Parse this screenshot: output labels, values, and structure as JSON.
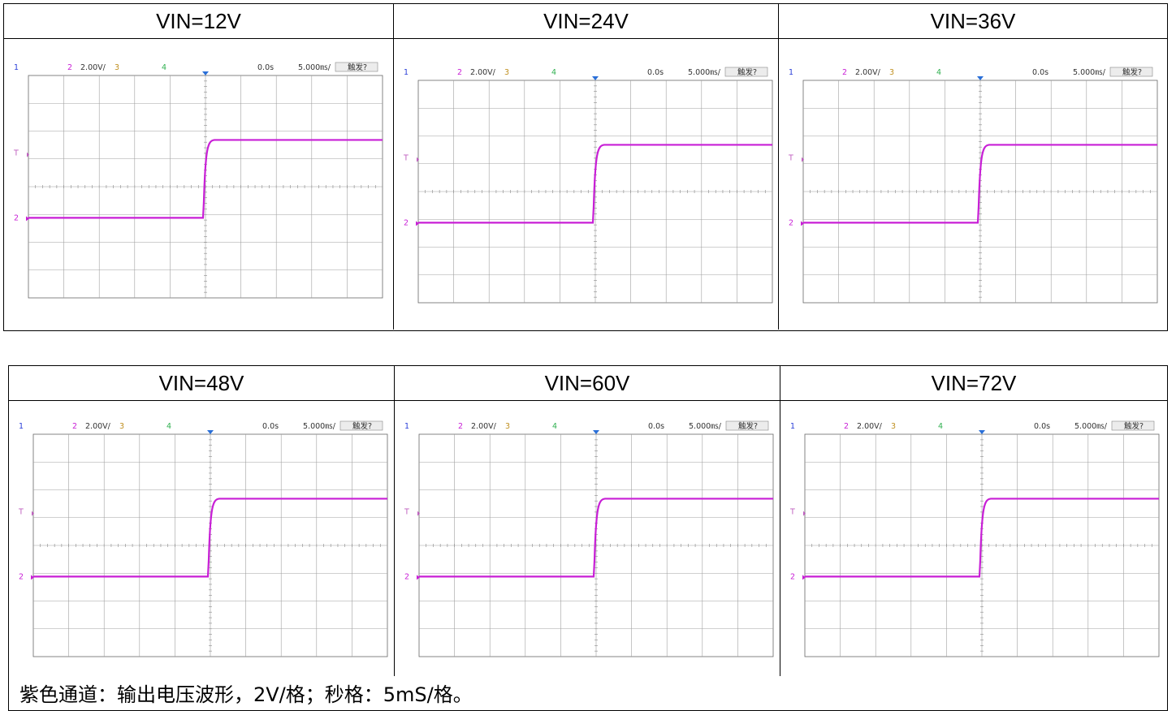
{
  "panels": [
    {
      "title": "VIN=12V"
    },
    {
      "title": "VIN=24V"
    },
    {
      "title": "VIN=36V"
    },
    {
      "title": "VIN=48V"
    },
    {
      "title": "VIN=60V"
    },
    {
      "title": "VIN=72V"
    }
  ],
  "scope": {
    "ch1": "1",
    "ch2": "2",
    "ch2_scale": "2.00V/",
    "ch3": "3",
    "ch4": "4",
    "time_offset": "0.0s",
    "time_scale": "5.000㎳/",
    "trigger": "触发?",
    "trigger_marker": "T",
    "ch2_marker": "2"
  },
  "colors": {
    "ch1": "#2a3fd8",
    "ch2": "#c81fd6",
    "ch3": "#c09020",
    "ch4": "#30b050",
    "grid": "#a0a0a0",
    "trace": "#c81fd6"
  },
  "caption": "紫色通道：输出电压波形，2V/格；秒格：5mS/格。"
}
